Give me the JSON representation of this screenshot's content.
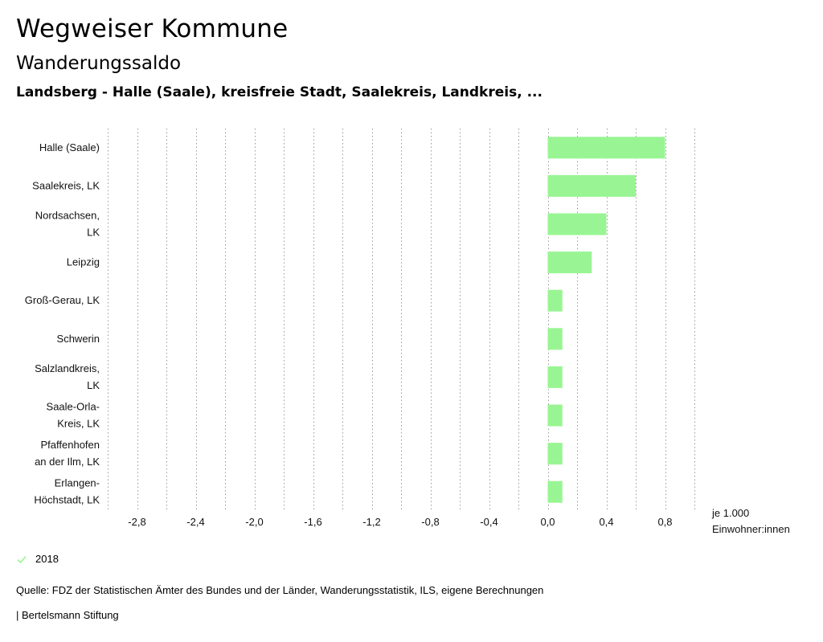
{
  "header": {
    "title": "Wegweiser Kommune",
    "subtitle": "Wanderungssaldo",
    "region": "Landsberg - Halle (Saale), kreisfreie Stadt, Saalekreis, Landkreis, ..."
  },
  "chart_data": {
    "type": "bar",
    "orientation": "horizontal",
    "categories": [
      [
        "Halle (Saale)"
      ],
      [
        "Saalekreis, LK"
      ],
      [
        "Nordsachsen,",
        "LK"
      ],
      [
        "Leipzig"
      ],
      [
        "Groß-Gerau, LK"
      ],
      [
        "Schwerin"
      ],
      [
        "Salzlandkreis,",
        "LK"
      ],
      [
        "Saale-Orla-",
        "Kreis, LK"
      ],
      [
        "Pfaffenhofen",
        "an der Ilm, LK"
      ],
      [
        "Erlangen-",
        "Höchstadt, LK"
      ]
    ],
    "series": [
      {
        "name": "2018",
        "values": [
          0.8,
          0.6,
          0.4,
          0.3,
          0.1,
          0.1,
          0.1,
          0.1,
          0.1,
          0.1
        ]
      }
    ],
    "xlim": [
      -3.0,
      1.0
    ],
    "xticks": [
      -2.8,
      -2.4,
      -2.0,
      -1.6,
      -1.2,
      -0.8,
      -0.4,
      0.0,
      0.4,
      0.8
    ],
    "xtick_labels": [
      "-2,8",
      "-2,4",
      "-2,0",
      "-1,6",
      "-1,2",
      "-0,8",
      "-0,4",
      "0,0",
      "0,4",
      "0,8"
    ],
    "xlabel": [
      "je 1.000",
      "Einwohner:innen"
    ],
    "bar_color": "#99f593",
    "grid": true
  },
  "legend": {
    "label": "2018",
    "color": "#99f593"
  },
  "footer": {
    "source": "Quelle: FDZ der Statistischen Ämter des Bundes und der Länder, Wanderungsstatistik, ILS, eigene Berechnungen",
    "publisher": "| Bertelsmann Stiftung"
  }
}
